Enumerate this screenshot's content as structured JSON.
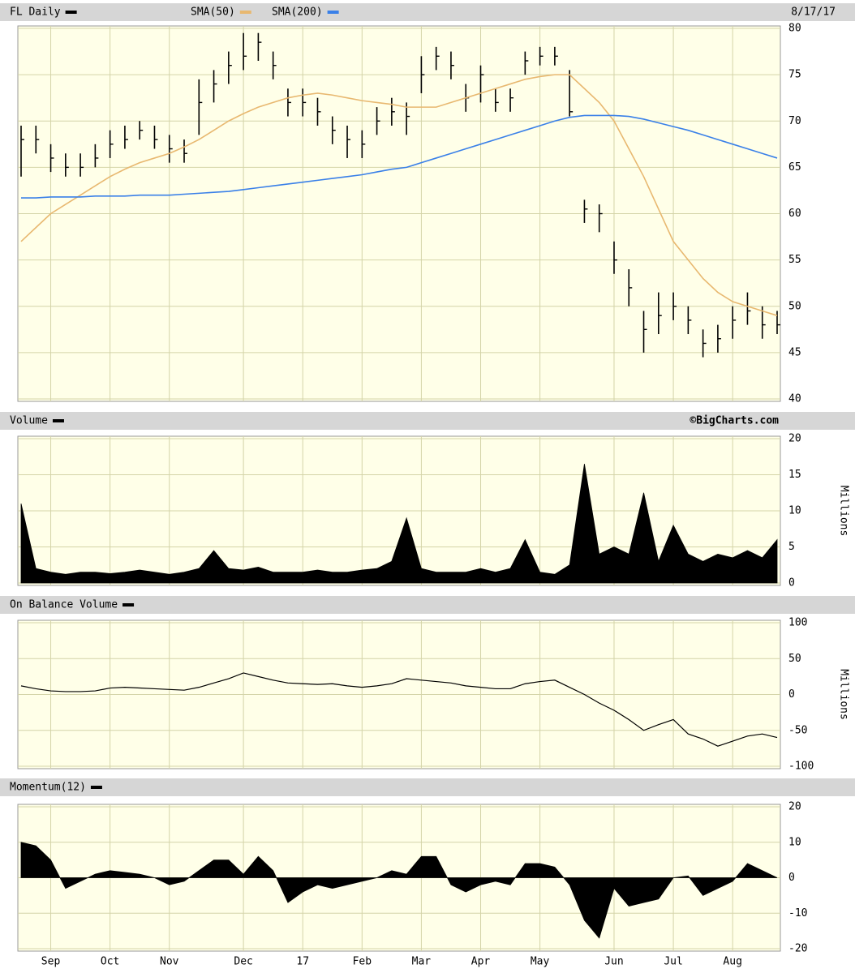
{
  "chart_data": [
    {
      "type": "ohlc",
      "date": "8/17/17",
      "ylim": [
        40,
        80
      ],
      "yticks": [
        40,
        45,
        50,
        55,
        60,
        65,
        70,
        75,
        80
      ],
      "grid": true,
      "series": [
        {
          "name": "FL Daily",
          "color": "#000000",
          "high": [
            69.5,
            69.5,
            67.5,
            66.5,
            66.5,
            67.5,
            69,
            69.5,
            70,
            69.5,
            68.5,
            68,
            74.5,
            75.5,
            77.5,
            79.5,
            79.5,
            77.5,
            73.5,
            73.5,
            72.5,
            70.5,
            69.5,
            69,
            71.5,
            72.5,
            72,
            77,
            78,
            77.5,
            74,
            76,
            73.5,
            73.5,
            77.5,
            78,
            78,
            75.5,
            61.5,
            61,
            57,
            54,
            49.5,
            51.5,
            51.5,
            50,
            47.5,
            48,
            50,
            51.5,
            50,
            49.5
          ],
          "low": [
            64,
            66.5,
            64.5,
            64,
            64,
            65,
            66,
            67,
            68,
            67,
            65.5,
            65.5,
            68.5,
            72,
            74,
            75.5,
            76.5,
            74.5,
            70.5,
            70.5,
            69.5,
            67.5,
            66,
            66,
            68.5,
            69.5,
            68.5,
            73,
            75.5,
            74.5,
            71,
            72,
            71,
            71,
            75,
            76,
            76,
            70.5,
            59,
            58,
            53.5,
            50,
            45,
            47,
            48.5,
            47,
            44.5,
            45,
            46.5,
            48,
            46.5,
            47
          ],
          "close": [
            68,
            68,
            66,
            65,
            65,
            66,
            67.5,
            68,
            69,
            68,
            67,
            66.5,
            72,
            74,
            76,
            77,
            78.5,
            76,
            72,
            72,
            71,
            69,
            68,
            67.5,
            70,
            71,
            70.5,
            75,
            77,
            76,
            72.5,
            75,
            72,
            72.5,
            76.5,
            77,
            77,
            71,
            60.5,
            60,
            55,
            52,
            47.5,
            49,
            50,
            48.5,
            46,
            46.5,
            48.5,
            49.5,
            48,
            48
          ]
        },
        {
          "name": "SMA(50)",
          "color": "#e8b870",
          "values": [
            57,
            58.5,
            60,
            61,
            62,
            63,
            64,
            64.8,
            65.5,
            66,
            66.5,
            67.2,
            68,
            69,
            70,
            70.8,
            71.5,
            72,
            72.5,
            72.8,
            73,
            72.8,
            72.5,
            72.2,
            72,
            71.8,
            71.5,
            71.5,
            71.5,
            72,
            72.5,
            73,
            73.5,
            74,
            74.5,
            74.8,
            75,
            75,
            73.5,
            72,
            70,
            67,
            64,
            60.5,
            57,
            55,
            53,
            51.5,
            50.5,
            50,
            49.5,
            49
          ]
        },
        {
          "name": "SMA(200)",
          "color": "#3a80e8",
          "values": [
            61.7,
            61.7,
            61.8,
            61.8,
            61.8,
            61.9,
            61.9,
            61.9,
            62,
            62,
            62,
            62.1,
            62.2,
            62.3,
            62.4,
            62.6,
            62.8,
            63,
            63.2,
            63.4,
            63.6,
            63.8,
            64,
            64.2,
            64.5,
            64.8,
            65,
            65.5,
            66,
            66.5,
            67,
            67.5,
            68,
            68.5,
            69,
            69.5,
            70,
            70.4,
            70.6,
            70.6,
            70.6,
            70.5,
            70.2,
            69.8,
            69.4,
            69,
            68.5,
            68,
            67.5,
            67,
            66.5,
            66
          ]
        }
      ]
    },
    {
      "type": "area",
      "credit": "©BigCharts.com",
      "ylabel": "Millions",
      "ylim": [
        0,
        20
      ],
      "yticks": [
        0,
        5,
        10,
        15,
        20
      ],
      "grid": true,
      "series": [
        {
          "name": "Volume",
          "color": "#000000",
          "values": [
            11,
            2,
            1.5,
            1.2,
            1.5,
            1.5,
            1.3,
            1.5,
            1.8,
            1.5,
            1.2,
            1.5,
            2,
            4.5,
            2,
            1.8,
            2.2,
            1.5,
            1.5,
            1.5,
            1.8,
            1.5,
            1.5,
            1.8,
            2,
            3,
            9,
            2,
            1.5,
            1.5,
            1.5,
            2,
            1.5,
            2,
            6,
            1.5,
            1.2,
            2.5,
            16.5,
            4,
            5,
            4,
            12.5,
            3,
            8,
            4,
            3,
            4,
            3.5,
            4.5,
            3.5,
            6
          ]
        }
      ]
    },
    {
      "type": "line",
      "ylabel": "Millions",
      "ylim": [
        -100,
        100
      ],
      "yticks": [
        -100,
        -50,
        0,
        50,
        100
      ],
      "grid": true,
      "series": [
        {
          "name": "On Balance Volume",
          "color": "#000000",
          "values": [
            12,
            8,
            5,
            4,
            4,
            5,
            9,
            10,
            9,
            8,
            7,
            6,
            10,
            16,
            22,
            30,
            25,
            20,
            16,
            15,
            14,
            15,
            12,
            10,
            12,
            15,
            22,
            20,
            18,
            16,
            12,
            10,
            8,
            8,
            15,
            18,
            20,
            10,
            0,
            -12,
            -22,
            -35,
            -50,
            -42,
            -35,
            -55,
            -62,
            -72,
            -65,
            -58,
            -55,
            -60
          ]
        }
      ]
    },
    {
      "type": "area",
      "ylim": [
        -20,
        20
      ],
      "yticks": [
        -20,
        -10,
        0,
        10,
        20
      ],
      "grid": true,
      "categories": [
        null,
        null,
        "Sep",
        null,
        null,
        null,
        "Oct",
        null,
        null,
        null,
        "Nov",
        null,
        null,
        null,
        null,
        "Dec",
        null,
        null,
        null,
        "17",
        null,
        null,
        null,
        "Feb",
        null,
        null,
        null,
        "Mar",
        null,
        null,
        null,
        "Apr",
        null,
        null,
        null,
        "May",
        null,
        null,
        null,
        null,
        "Jun",
        null,
        null,
        null,
        "Jul",
        null,
        null,
        null,
        "Aug",
        null,
        null,
        null
      ],
      "series": [
        {
          "name": "Momentum(12)",
          "color": "#000000",
          "values": [
            10,
            9,
            5,
            -3,
            -1,
            1,
            2,
            1.5,
            1,
            0,
            -2,
            -1,
            2,
            5,
            5,
            1,
            6,
            2,
            -7,
            -4,
            -2,
            -3,
            -2,
            -1,
            0,
            2,
            1,
            6,
            6,
            -2,
            -4,
            -2,
            -1,
            -2,
            4,
            4,
            3,
            -2,
            -12,
            -17,
            -3,
            -8,
            -7,
            -6,
            0,
            0.5,
            -5,
            -3,
            -1,
            4,
            2,
            0
          ]
        }
      ]
    }
  ]
}
